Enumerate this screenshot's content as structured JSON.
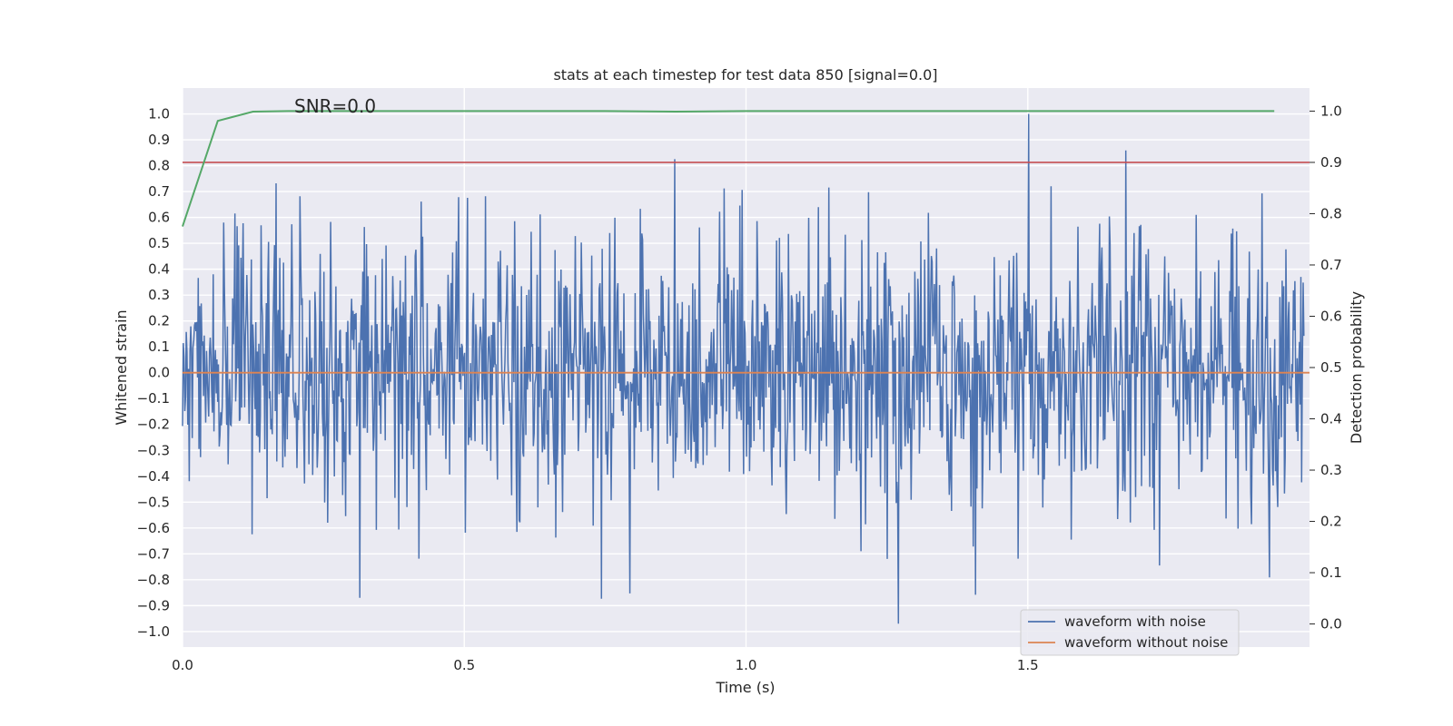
{
  "chart_data": {
    "type": "line",
    "title": "stats at each timestep for test data 850 [signal=0.0]",
    "xlabel": "Time (s)",
    "ylabel": "Whitened strain",
    "y2label": "Detection probability",
    "xlim": [
      0.0,
      2.0
    ],
    "ylim": [
      -1.06,
      1.1
    ],
    "y2lim": [
      -0.045,
      1.045
    ],
    "x_ticks": [
      0.0,
      0.5,
      1.0,
      1.5
    ],
    "x_tick_labels": [
      "0.0",
      "0.5",
      "1.0",
      "1.5"
    ],
    "y_ticks": [
      1.0,
      0.9,
      0.8,
      0.7,
      0.6,
      0.5,
      0.4,
      0.3,
      0.2,
      0.1,
      0.0,
      -0.1,
      -0.2,
      -0.3,
      -0.4,
      -0.5,
      -0.6,
      -0.7,
      -0.8,
      -0.9,
      -1.0
    ],
    "y_tick_labels": [
      "1.0",
      "0.9",
      "0.8",
      "0.7",
      "0.6",
      "0.5",
      "0.4",
      "0.3",
      "0.2",
      "0.1",
      "0.0",
      "−0.1",
      "−0.2",
      "−0.3",
      "−0.4",
      "−0.5",
      "−0.6",
      "−0.7",
      "−0.8",
      "−0.9",
      "−1.0"
    ],
    "y2_ticks": [
      1.0,
      0.9,
      0.8,
      0.7,
      0.6,
      0.5,
      0.4,
      0.3,
      0.2,
      0.1,
      0.0
    ],
    "y2_tick_labels": [
      "1.0",
      "0.9",
      "0.8",
      "0.7",
      "0.6",
      "0.5",
      "0.4",
      "0.3",
      "0.2",
      "0.1",
      "0.0"
    ],
    "annotation": "SNR=0.0",
    "threshold": {
      "value": 0.9,
      "axis": "y2",
      "color": "#c44e52"
    },
    "series": [
      {
        "name": "waveform with noise",
        "axis": "y",
        "color": "#4c72b0",
        "kind": "noise",
        "n_points": 1500,
        "duration_s": 1.99,
        "std": 0.27,
        "peak_max": 1.0,
        "peak_min": -0.97,
        "in_legend": true
      },
      {
        "name": "waveform without noise",
        "axis": "y",
        "color": "#dd8452",
        "kind": "flat",
        "value": 0.0,
        "in_legend": true
      },
      {
        "name": "detection probability",
        "axis": "y2",
        "color": "#55a868",
        "in_legend": false,
        "x": [
          0.0,
          0.0625,
          0.125,
          0.1875,
          0.25,
          0.5,
          0.75,
          0.875,
          1.0,
          1.25,
          1.5,
          1.75,
          1.9375
        ],
        "values": [
          0.775,
          0.981,
          0.999,
          1.0,
          1.0,
          1.0,
          1.0,
          0.999,
          1.0,
          1.0,
          1.0,
          1.0,
          1.0
        ]
      }
    ],
    "legend_position": "lower-right",
    "grid": true,
    "background_color": "#eaeaf2"
  }
}
